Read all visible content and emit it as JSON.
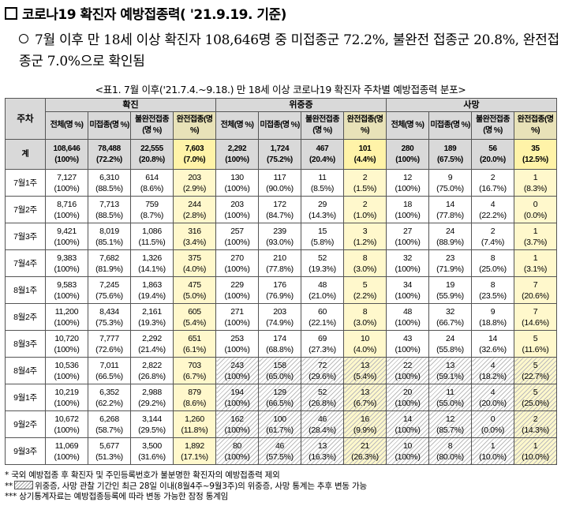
{
  "title": "코로나19 확진자 예방접종력( '21.9.19. 기준)",
  "summary": "7월 이후 만 18세 이상 확진자 108,646명 중 미접종군 72.2%, 불완전 접종군 20.8%, 완전접종군 7.0%으로 확인됨",
  "caption": "<표1. 7월 이후('21.7.4.~9.18.) 만 18세 이상 코로나19 확진자 주차별 예방접종력 분포>",
  "header": {
    "week_col": "주차",
    "groups": [
      "확진",
      "위중증",
      "사망"
    ],
    "subcols": [
      {
        "name": "전체",
        "unit": "(명 %)"
      },
      {
        "name": "미접종",
        "unit": "(명 %)"
      },
      {
        "name": "불완전접종",
        "unit": "(명 %)"
      },
      {
        "name": "완전접종",
        "unit": "(명 %)"
      }
    ]
  },
  "rows": [
    {
      "label": "계",
      "cells": [
        [
          "108,646",
          "(100%)"
        ],
        [
          "78,488",
          "(72.2%)"
        ],
        [
          "22,555",
          "(20.8%)"
        ],
        [
          "7,603",
          "(7.0%)"
        ],
        [
          "2,292",
          "(100%)"
        ],
        [
          "1,724",
          "(75.2%)"
        ],
        [
          "467",
          "(20.4%)"
        ],
        [
          "101",
          "(4.4%)"
        ],
        [
          "280",
          "(100%)"
        ],
        [
          "189",
          "(67.5%)"
        ],
        [
          "56",
          "(20.0%)"
        ],
        [
          "35",
          "(12.5%)"
        ]
      ]
    },
    {
      "label": "7월1주",
      "cells": [
        [
          "7,127",
          "(100%)"
        ],
        [
          "6,310",
          "(88.5%)"
        ],
        [
          "614",
          "(8.6%)"
        ],
        [
          "203",
          "(2.9%)"
        ],
        [
          "130",
          "(100%)"
        ],
        [
          "117",
          "(90.0%)"
        ],
        [
          "11",
          "(8.5%)"
        ],
        [
          "2",
          "(1.5%)"
        ],
        [
          "12",
          "(100%)"
        ],
        [
          "9",
          "(75.0%)"
        ],
        [
          "2",
          "(16.7%)"
        ],
        [
          "1",
          "(8.3%)"
        ]
      ]
    },
    {
      "label": "7월2주",
      "cells": [
        [
          "8,716",
          "(100%)"
        ],
        [
          "7,713",
          "(88.5%)"
        ],
        [
          "759",
          "(8.7%)"
        ],
        [
          "244",
          "(2.8%)"
        ],
        [
          "203",
          "(100%)"
        ],
        [
          "172",
          "(84.7%)"
        ],
        [
          "29",
          "(14.3%)"
        ],
        [
          "2",
          "(1.0%)"
        ],
        [
          "18",
          "(100%)"
        ],
        [
          "14",
          "(77.8%)"
        ],
        [
          "4",
          "(22.2%)"
        ],
        [
          "0",
          "(0.0%)"
        ]
      ]
    },
    {
      "label": "7월3주",
      "cells": [
        [
          "9,421",
          "(100%)"
        ],
        [
          "8,019",
          "(85.1%)"
        ],
        [
          "1,086",
          "(11.5%)"
        ],
        [
          "316",
          "(3.4%)"
        ],
        [
          "257",
          "(100%)"
        ],
        [
          "239",
          "(93.0%)"
        ],
        [
          "15",
          "(5.8%)"
        ],
        [
          "3",
          "(1.2%)"
        ],
        [
          "27",
          "(100%)"
        ],
        [
          "24",
          "(88.9%)"
        ],
        [
          "2",
          "(7.4%)"
        ],
        [
          "1",
          "(3.7%)"
        ]
      ]
    },
    {
      "label": "7월4주",
      "cells": [
        [
          "9,383",
          "(100%)"
        ],
        [
          "7,682",
          "(81.9%)"
        ],
        [
          "1,326",
          "(14.1%)"
        ],
        [
          "375",
          "(4.0%)"
        ],
        [
          "270",
          "(100%)"
        ],
        [
          "210",
          "(77.8%)"
        ],
        [
          "52",
          "(19.3%)"
        ],
        [
          "8",
          "(3.0%)"
        ],
        [
          "32",
          "(100%)"
        ],
        [
          "23",
          "(71.9%)"
        ],
        [
          "8",
          "(25.0%)"
        ],
        [
          "1",
          "(3.1%)"
        ]
      ]
    },
    {
      "label": "8월1주",
      "cells": [
        [
          "9,583",
          "(100%)"
        ],
        [
          "7,245",
          "(75.6%)"
        ],
        [
          "1,863",
          "(19.4%)"
        ],
        [
          "475",
          "(5.0%)"
        ],
        [
          "229",
          "(100%)"
        ],
        [
          "176",
          "(76.9%)"
        ],
        [
          "48",
          "(21.0%)"
        ],
        [
          "5",
          "(2.2%)"
        ],
        [
          "34",
          "(100%)"
        ],
        [
          "19",
          "(55.9%)"
        ],
        [
          "8",
          "(23.5%)"
        ],
        [
          "7",
          "(20.6%)"
        ]
      ]
    },
    {
      "label": "8월2주",
      "cells": [
        [
          "11,200",
          "(100%)"
        ],
        [
          "8,434",
          "(75.3%)"
        ],
        [
          "2,161",
          "(19.3%)"
        ],
        [
          "605",
          "(5.4%)"
        ],
        [
          "271",
          "(100%)"
        ],
        [
          "203",
          "(74.9%)"
        ],
        [
          "60",
          "(22.1%)"
        ],
        [
          "8",
          "(3.0%)"
        ],
        [
          "48",
          "(100%)"
        ],
        [
          "32",
          "(66.7%)"
        ],
        [
          "9",
          "(18.8%)"
        ],
        [
          "7",
          "(14.6%)"
        ]
      ]
    },
    {
      "label": "8월3주",
      "cells": [
        [
          "10,720",
          "(100%)"
        ],
        [
          "7,777",
          "(72.6%)"
        ],
        [
          "2,292",
          "(21.4%)"
        ],
        [
          "651",
          "(6.1%)"
        ],
        [
          "253",
          "(100%)"
        ],
        [
          "174",
          "(68.8%)"
        ],
        [
          "69",
          "(27.3%)"
        ],
        [
          "10",
          "(4.0%)"
        ],
        [
          "43",
          "(100%)"
        ],
        [
          "24",
          "(55.8%)"
        ],
        [
          "14",
          "(32.6%)"
        ],
        [
          "5",
          "(11.6%)"
        ]
      ]
    },
    {
      "label": "8월4주",
      "cells": [
        [
          "10,536",
          "(100%)"
        ],
        [
          "7,011",
          "(66.5%)"
        ],
        [
          "2,822",
          "(26.8%)"
        ],
        [
          "703",
          "(6.7%)"
        ],
        [
          "243",
          "(100%)"
        ],
        [
          "158",
          "(65.0%)"
        ],
        [
          "72",
          "(29.6%)"
        ],
        [
          "13",
          "(5.4%)"
        ],
        [
          "22",
          "(100%)"
        ],
        [
          "13",
          "(59.1%)"
        ],
        [
          "4",
          "(18.2%)"
        ],
        [
          "5",
          "(22.7%)"
        ]
      ]
    },
    {
      "label": "9월1주",
      "cells": [
        [
          "10,219",
          "(100%)"
        ],
        [
          "6,352",
          "(62.2%)"
        ],
        [
          "2,988",
          "(29.2%)"
        ],
        [
          "879",
          "(8.6%)"
        ],
        [
          "194",
          "(100%)"
        ],
        [
          "129",
          "(66.5%)"
        ],
        [
          "52",
          "(26.8%)"
        ],
        [
          "13",
          "(6.7%)"
        ],
        [
          "20",
          "(100%)"
        ],
        [
          "11",
          "(55.0%)"
        ],
        [
          "4",
          "(20.0%)"
        ],
        [
          "5",
          "(25.0%)"
        ]
      ]
    },
    {
      "label": "9월2주",
      "cells": [
        [
          "10,672",
          "(100%)"
        ],
        [
          "6,268",
          "(58.7%)"
        ],
        [
          "3,144",
          "(29.5%)"
        ],
        [
          "1,260",
          "(11.8%)"
        ],
        [
          "162",
          "(100%)"
        ],
        [
          "100",
          "(61.7%)"
        ],
        [
          "46",
          "(28.4%)"
        ],
        [
          "16",
          "(9.9%)"
        ],
        [
          "14",
          "(100%)"
        ],
        [
          "12",
          "(85.7%)"
        ],
        [
          "0",
          "(0.0%)"
        ],
        [
          "2",
          "(14.3%)"
        ]
      ]
    },
    {
      "label": "9월3주",
      "cells": [
        [
          "11,069",
          "(100%)"
        ],
        [
          "5,677",
          "(51.3%)"
        ],
        [
          "3,500",
          "(31.6%)"
        ],
        [
          "1,892",
          "(17.1%)"
        ],
        [
          "80",
          "(100%)"
        ],
        [
          "46",
          "(57.5%)"
        ],
        [
          "13",
          "(16.3%)"
        ],
        [
          "21",
          "(26.3%)"
        ],
        [
          "10",
          "(100%)"
        ],
        [
          "8",
          "(80.0%)"
        ],
        [
          "1",
          "(10.0%)"
        ],
        [
          "1",
          "(10.0%)"
        ]
      ]
    }
  ],
  "notes": {
    "n1": "* 국외 예방접종 후 확진자 및 주민등록번호가 불분명한 확진자의 예방접종력 제외",
    "n2_prefix": "**",
    "n2": "위중증, 사망 관찰 기간인 최근 28일 이내(8월4주~9월3주)의 위중증, 사망 통계는 추후 변동 가능",
    "n3": "*** 상기통계자료는 예방접종등록에 따라 변동 가능한 잠정 통계임"
  },
  "colors": {
    "header_bg": "#d9d9d9",
    "highlight": "#fff8cc"
  }
}
